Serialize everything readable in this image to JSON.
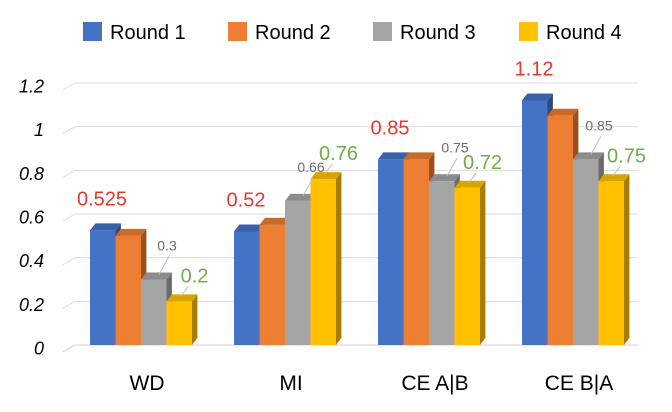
{
  "chart_data": {
    "type": "bar",
    "style": "3d-clustered-column",
    "title": "",
    "xlabel": "",
    "ylabel": "",
    "categories": [
      "WD",
      "MI",
      "CE A|B",
      "CE B|A"
    ],
    "ylim": [
      0,
      1.2
    ],
    "yticks": [
      "0",
      "0.2",
      "0.4",
      "0.6",
      "0.8",
      "1",
      "1.2"
    ],
    "grid": true,
    "legend_position": "top",
    "series": [
      {
        "name": "Round 1",
        "color": "#4472C4",
        "values": [
          0.525,
          0.52,
          0.85,
          1.12
        ]
      },
      {
        "name": "Round 2",
        "color": "#ED7D31",
        "values": [
          0.5,
          0.55,
          0.85,
          1.05
        ]
      },
      {
        "name": "Round 3",
        "color": "#A5A5A5",
        "values": [
          0.3,
          0.66,
          0.75,
          0.85
        ]
      },
      {
        "name": "Round 4",
        "color": "#FFC000",
        "values": [
          0.2,
          0.76,
          0.72,
          0.75
        ]
      }
    ],
    "data_labels": [
      {
        "category_index": 0,
        "series_index": 0,
        "text": "0.525",
        "color": "#E8382E",
        "size": "large"
      },
      {
        "category_index": 0,
        "series_index": 2,
        "text": "0.3",
        "color": "#6b6b6b",
        "size": "small"
      },
      {
        "category_index": 0,
        "series_index": 3,
        "text": "0.2",
        "color": "#70AD47",
        "size": "large"
      },
      {
        "category_index": 1,
        "series_index": 0,
        "text": "0.52",
        "color": "#E8382E",
        "size": "large"
      },
      {
        "category_index": 1,
        "series_index": 2,
        "text": "0.66",
        "color": "#6b6b6b",
        "size": "small"
      },
      {
        "category_index": 1,
        "series_index": 3,
        "text": "0.76",
        "color": "#70AD47",
        "size": "large"
      },
      {
        "category_index": 2,
        "series_index": 0,
        "text": "0.85",
        "color": "#E8382E",
        "size": "large"
      },
      {
        "category_index": 2,
        "series_index": 2,
        "text": "0.75",
        "color": "#6b6b6b",
        "size": "small"
      },
      {
        "category_index": 2,
        "series_index": 3,
        "text": "0.72",
        "color": "#70AD47",
        "size": "large"
      },
      {
        "category_index": 3,
        "series_index": 0,
        "text": "1.12",
        "color": "#E8382E",
        "size": "large"
      },
      {
        "category_index": 3,
        "series_index": 2,
        "text": "0.85",
        "color": "#6b6b6b",
        "size": "small"
      },
      {
        "category_index": 3,
        "series_index": 3,
        "text": "0.75",
        "color": "#70AD47",
        "size": "large"
      }
    ]
  }
}
